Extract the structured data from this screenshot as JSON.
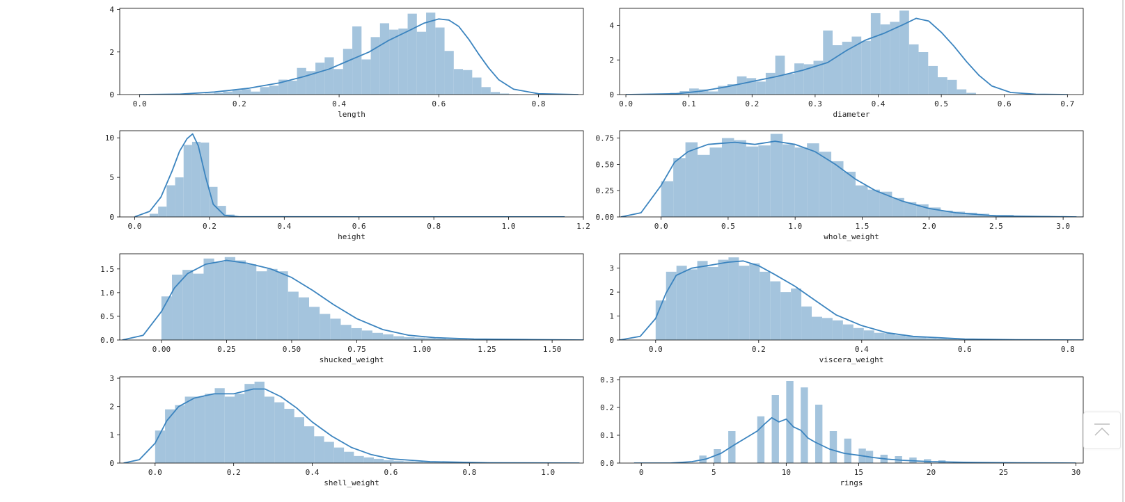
{
  "colors": {
    "bar_fill": "#a4c4dd",
    "kde_line": "#3b84bf",
    "axis": "#000000",
    "text": "#222222"
  },
  "back_to_top": {
    "icon": "arrow-up-to-line-icon"
  },
  "chart_data": [
    {
      "type": "bar",
      "subtype": "histogram+kde",
      "xlabel": "length",
      "ylabel": "",
      "xlim": [
        -0.04,
        0.89
      ],
      "ylim": [
        0,
        4.05
      ],
      "xticks": [
        0.0,
        0.2,
        0.4,
        0.6,
        0.8
      ],
      "xtick_labels": [
        "0.0",
        "0.2",
        "0.4",
        "0.6",
        "0.8"
      ],
      "yticks": [
        0,
        2,
        4
      ],
      "ytick_labels": [
        "0",
        "2",
        "4"
      ],
      "bins": {
        "start": 0.075,
        "width": 0.0185,
        "values": [
          0.01,
          0.02,
          0.03,
          0.05,
          0.08,
          0.14,
          0.2,
          0.25,
          0.14,
          0.35,
          0.42,
          0.7,
          0.65,
          1.25,
          1.1,
          1.5,
          1.75,
          1.2,
          2.15,
          3.2,
          1.65,
          2.7,
          3.35,
          3.05,
          3.1,
          3.8,
          2.95,
          3.85,
          3.15,
          2.05,
          1.2,
          1.15,
          0.8,
          0.35,
          0.12,
          0.05,
          0.02
        ]
      },
      "kde": {
        "x": [
          0.0,
          0.08,
          0.15,
          0.22,
          0.28,
          0.33,
          0.38,
          0.42,
          0.46,
          0.5,
          0.54,
          0.57,
          0.6,
          0.62,
          0.64,
          0.66,
          0.68,
          0.7,
          0.72,
          0.75,
          0.8,
          0.88
        ],
        "y": [
          0.0,
          0.02,
          0.12,
          0.3,
          0.55,
          0.85,
          1.2,
          1.6,
          2.0,
          2.55,
          3.0,
          3.35,
          3.55,
          3.5,
          3.2,
          2.6,
          1.9,
          1.25,
          0.7,
          0.25,
          0.04,
          0.0
        ]
      }
    },
    {
      "type": "bar",
      "subtype": "histogram+kde",
      "xlabel": "diameter",
      "ylabel": "",
      "xlim": [
        -0.01,
        0.725
      ],
      "ylim": [
        0,
        4.98
      ],
      "xticks": [
        0.0,
        0.1,
        0.2,
        0.3,
        0.4,
        0.5,
        0.6,
        0.7
      ],
      "xtick_labels": [
        "0.0",
        "0.1",
        "0.2",
        "0.3",
        "0.4",
        "0.5",
        "0.6",
        "0.7"
      ],
      "yticks": [
        0,
        2,
        4
      ],
      "ytick_labels": [
        "0",
        "2",
        "4"
      ],
      "bins": {
        "start": 0.055,
        "width": 0.01515,
        "values": [
          0.05,
          0.1,
          0.2,
          0.35,
          0.3,
          0.18,
          0.5,
          0.6,
          1.05,
          0.95,
          0.75,
          1.25,
          2.25,
          1.2,
          1.8,
          1.75,
          1.95,
          3.7,
          2.85,
          3.05,
          3.35,
          3.1,
          4.7,
          4.05,
          4.2,
          4.85,
          2.9,
          2.45,
          1.65,
          1.0,
          0.85,
          0.3,
          0.1
        ]
      },
      "kde": {
        "x": [
          0.0,
          0.08,
          0.12,
          0.16,
          0.2,
          0.24,
          0.28,
          0.32,
          0.35,
          0.38,
          0.41,
          0.44,
          0.46,
          0.48,
          0.5,
          0.52,
          0.54,
          0.56,
          0.58,
          0.61,
          0.65,
          0.7
        ],
        "y": [
          0.0,
          0.05,
          0.2,
          0.45,
          0.75,
          1.05,
          1.4,
          1.85,
          2.55,
          3.15,
          3.55,
          4.05,
          4.4,
          4.25,
          3.6,
          2.8,
          1.9,
          1.1,
          0.5,
          0.12,
          0.02,
          0.0
        ]
      }
    },
    {
      "type": "bar",
      "subtype": "histogram+kde",
      "xlabel": "height",
      "ylabel": "",
      "xlim": [
        -0.04,
        1.2
      ],
      "ylim": [
        0,
        10.9
      ],
      "xticks": [
        0.0,
        0.2,
        0.4,
        0.6,
        0.8,
        1.0,
        1.2
      ],
      "xtick_labels": [
        "0.0",
        "0.2",
        "0.4",
        "0.6",
        "0.8",
        "1.0",
        "1.2"
      ],
      "yticks": [
        0,
        5,
        10
      ],
      "ytick_labels": [
        "0",
        "5",
        "10"
      ],
      "bins": {
        "start": 0.04,
        "width": 0.0227,
        "values": [
          0.4,
          1.3,
          4.0,
          5.0,
          9.1,
          9.5,
          9.4,
          3.8,
          1.4,
          0.3,
          0.05,
          0.02,
          0.02,
          0.01,
          0.01,
          0.01,
          0.01,
          0.01,
          0.01,
          0.01,
          0.01,
          0.01,
          0.01,
          0.01,
          0.01,
          0.01,
          0.01,
          0.01,
          0.01,
          0.01,
          0.01,
          0.01,
          0.01,
          0.01,
          0.01,
          0.01,
          0.01,
          0.01,
          0.01,
          0.01,
          0.01,
          0.01,
          0.01,
          0.01,
          0.01,
          0.01,
          0.01,
          0.01,
          0.01,
          0.01
        ]
      },
      "kde": {
        "x": [
          0.0,
          0.04,
          0.07,
          0.1,
          0.12,
          0.14,
          0.155,
          0.17,
          0.19,
          0.21,
          0.24,
          0.28,
          0.4,
          0.6,
          0.8,
          1.0,
          1.15
        ],
        "y": [
          0.02,
          0.7,
          2.5,
          5.8,
          8.3,
          9.9,
          10.5,
          9.0,
          5.0,
          1.6,
          0.2,
          0.02,
          0.02,
          0.01,
          0.01,
          0.01,
          0.01
        ]
      }
    },
    {
      "type": "bar",
      "subtype": "histogram+kde",
      "xlabel": "whole_weight",
      "ylabel": "",
      "xlim": [
        -0.31,
        3.15
      ],
      "ylim": [
        0,
        0.82
      ],
      "xticks": [
        0.0,
        0.5,
        1.0,
        1.5,
        2.0,
        2.5,
        3.0
      ],
      "xtick_labels": [
        "0.0",
        "0.5",
        "1.0",
        "1.5",
        "2.0",
        "2.5",
        "3.0"
      ],
      "yticks": [
        0,
        0.25,
        0.5,
        0.75
      ],
      "ytick_labels": [
        "0.00",
        "0.25",
        "0.50",
        "0.75"
      ],
      "bins": {
        "start": 0.0,
        "width": 0.0907,
        "values": [
          0.34,
          0.56,
          0.71,
          0.59,
          0.66,
          0.75,
          0.73,
          0.67,
          0.68,
          0.79,
          0.69,
          0.66,
          0.7,
          0.62,
          0.53,
          0.43,
          0.3,
          0.26,
          0.24,
          0.18,
          0.14,
          0.12,
          0.09,
          0.06,
          0.05,
          0.04,
          0.03,
          0.02,
          0.02,
          0.01,
          0.01,
          0.01,
          0.005,
          0.005,
          0.005
        ]
      },
      "kde": {
        "x": [
          -0.3,
          -0.15,
          0.0,
          0.1,
          0.2,
          0.35,
          0.55,
          0.7,
          0.85,
          1.0,
          1.15,
          1.3,
          1.45,
          1.6,
          1.8,
          2.0,
          2.2,
          2.5,
          3.1
        ],
        "y": [
          0.0,
          0.04,
          0.3,
          0.52,
          0.62,
          0.69,
          0.71,
          0.69,
          0.72,
          0.69,
          0.62,
          0.5,
          0.36,
          0.25,
          0.15,
          0.08,
          0.04,
          0.01,
          0.0
        ]
      }
    },
    {
      "type": "bar",
      "subtype": "histogram+kde",
      "xlabel": "shucked_weight",
      "ylabel": "",
      "xlim": [
        -0.16,
        1.62
      ],
      "ylim": [
        0,
        1.82
      ],
      "xticks": [
        0.0,
        0.25,
        0.5,
        0.75,
        1.0,
        1.25,
        1.5
      ],
      "xtick_labels": [
        "0.00",
        "0.25",
        "0.50",
        "0.75",
        "1.00",
        "1.25",
        "1.50"
      ],
      "yticks": [
        0,
        0.5,
        1.0,
        1.5
      ],
      "ytick_labels": [
        "0.0",
        "0.5",
        "1.0",
        "1.5"
      ],
      "bins": {
        "start": 0.0,
        "width": 0.0405,
        "values": [
          0.92,
          1.38,
          1.48,
          1.4,
          1.72,
          1.65,
          1.75,
          1.68,
          1.6,
          1.45,
          1.5,
          1.45,
          1.02,
          0.9,
          0.7,
          0.55,
          0.45,
          0.32,
          0.25,
          0.2,
          0.15,
          0.12,
          0.08,
          0.06,
          0.05,
          0.04,
          0.03,
          0.02,
          0.02,
          0.01,
          0.01,
          0.01,
          0.01,
          0.01,
          0.01,
          0.01,
          0.01,
          0.01,
          0.01
        ]
      },
      "kde": {
        "x": [
          -0.15,
          -0.07,
          0.0,
          0.05,
          0.1,
          0.17,
          0.25,
          0.33,
          0.42,
          0.5,
          0.58,
          0.66,
          0.75,
          0.85,
          0.95,
          1.05,
          1.2,
          1.4,
          1.62
        ],
        "y": [
          0.0,
          0.1,
          0.6,
          1.1,
          1.4,
          1.6,
          1.68,
          1.62,
          1.5,
          1.32,
          1.05,
          0.75,
          0.45,
          0.22,
          0.1,
          0.05,
          0.02,
          0.01,
          0.0
        ]
      }
    },
    {
      "type": "bar",
      "subtype": "histogram+kde",
      "xlabel": "viscera_weight",
      "ylabel": "",
      "xlim": [
        -0.07,
        0.83
      ],
      "ylim": [
        0,
        3.6
      ],
      "xticks": [
        0.0,
        0.2,
        0.4,
        0.6,
        0.8
      ],
      "xtick_labels": [
        "0.0",
        "0.2",
        "0.4",
        "0.6",
        "0.8"
      ],
      "yticks": [
        0,
        1,
        2,
        3
      ],
      "ytick_labels": [
        "0",
        "1",
        "2",
        "3"
      ],
      "bins": {
        "start": 0.0,
        "width": 0.0202,
        "values": [
          1.65,
          2.85,
          3.1,
          2.95,
          3.3,
          3.05,
          3.35,
          3.45,
          3.1,
          3.2,
          2.85,
          2.45,
          2.0,
          2.15,
          1.4,
          0.97,
          0.92,
          0.82,
          0.65,
          0.5,
          0.4,
          0.3,
          0.28,
          0.2,
          0.15,
          0.12,
          0.08,
          0.06,
          0.05,
          0.04,
          0.03,
          0.03,
          0.02,
          0.02,
          0.02,
          0.01,
          0.01,
          0.01,
          0.01,
          0.01
        ]
      },
      "kde": {
        "x": [
          -0.07,
          -0.03,
          0.0,
          0.02,
          0.04,
          0.07,
          0.1,
          0.14,
          0.17,
          0.2,
          0.23,
          0.27,
          0.31,
          0.35,
          0.4,
          0.45,
          0.5,
          0.6,
          0.7,
          0.83
        ],
        "y": [
          0.0,
          0.15,
          0.9,
          1.95,
          2.7,
          3.0,
          3.1,
          3.25,
          3.3,
          3.1,
          2.75,
          2.25,
          1.65,
          1.05,
          0.6,
          0.3,
          0.15,
          0.04,
          0.01,
          0.0
        ]
      }
    },
    {
      "type": "bar",
      "subtype": "histogram+kde",
      "xlabel": "shell_weight",
      "ylabel": "",
      "xlim": [
        -0.09,
        1.09
      ],
      "ylim": [
        0,
        3.05
      ],
      "xticks": [
        0.0,
        0.2,
        0.4,
        0.6,
        0.8,
        1.0
      ],
      "xtick_labels": [
        "0.0",
        "0.2",
        "0.4",
        "0.6",
        "0.8",
        "1.0"
      ],
      "yticks": [
        0,
        1,
        2,
        3
      ],
      "ytick_labels": [
        "0",
        "1",
        "2",
        "3"
      ],
      "bins": {
        "start": 0.0,
        "width": 0.0253,
        "values": [
          1.15,
          1.9,
          2.05,
          2.35,
          2.35,
          2.45,
          2.65,
          2.35,
          2.45,
          2.8,
          2.88,
          2.35,
          2.15,
          1.92,
          1.62,
          1.3,
          0.95,
          0.75,
          0.55,
          0.4,
          0.25,
          0.2,
          0.15,
          0.1,
          0.08,
          0.06,
          0.05,
          0.04,
          0.03,
          0.02,
          0.02,
          0.01,
          0.01,
          0.01,
          0.01,
          0.01,
          0.01,
          0.01,
          0.01,
          0.01
        ]
      },
      "kde": {
        "x": [
          -0.08,
          -0.04,
          0.0,
          0.03,
          0.06,
          0.1,
          0.15,
          0.2,
          0.25,
          0.28,
          0.32,
          0.36,
          0.4,
          0.45,
          0.5,
          0.55,
          0.6,
          0.7,
          0.85,
          1.08
        ],
        "y": [
          0.0,
          0.12,
          0.7,
          1.5,
          2.0,
          2.3,
          2.45,
          2.45,
          2.62,
          2.62,
          2.35,
          1.95,
          1.45,
          0.95,
          0.55,
          0.3,
          0.15,
          0.05,
          0.01,
          0.0
        ]
      }
    },
    {
      "type": "bar",
      "subtype": "histogram+kde",
      "xlabel": "rings",
      "ylabel": "",
      "xlim": [
        -1.5,
        30.5
      ],
      "ylim": [
        0,
        0.31
      ],
      "xticks": [
        0,
        5,
        10,
        15,
        20,
        25,
        30
      ],
      "xtick_labels": [
        "0",
        "5",
        "10",
        "15",
        "20",
        "25",
        "30"
      ],
      "yticks": [
        0,
        0.1,
        0.2,
        0.3
      ],
      "ytick_labels": [
        "0.0",
        "0.1",
        "0.2",
        "0.3"
      ],
      "bins": {
        "start": 1.0,
        "width": 0.5,
        "values": [
          0.0,
          0.0,
          0.0,
          0.0,
          0.0,
          0.0,
          0.027,
          0.0,
          0.05,
          0.0,
          0.115,
          0.0,
          0.0,
          0.0,
          0.168,
          0.0,
          0.245,
          0.0,
          0.295,
          0.0,
          0.272,
          0.0,
          0.21,
          0.0,
          0.115,
          0.0,
          0.088,
          0.0,
          0.052,
          0.044,
          0.0,
          0.03,
          0.0,
          0.025,
          0.0,
          0.02,
          0.0,
          0.014,
          0.0,
          0.01,
          0.0,
          0.005,
          0.0,
          0.004,
          0.0,
          0.003,
          0.0,
          0.002,
          0.0,
          0.001,
          0.0,
          0.001,
          0.0,
          0.001,
          0.0,
          0.001,
          0.0,
          0.001
        ]
      },
      "kde": {
        "x": [
          -0.5,
          2.0,
          3.5,
          4.5,
          5.5,
          6.5,
          7.2,
          8.0,
          8.5,
          9.0,
          9.5,
          10.0,
          10.5,
          11.0,
          11.5,
          12.0,
          13.0,
          14.0,
          15.0,
          16.0,
          17.0,
          18.0,
          20.0,
          23.0,
          26.0,
          30.0
        ],
        "y": [
          0.0,
          0.0,
          0.005,
          0.015,
          0.035,
          0.068,
          0.09,
          0.115,
          0.14,
          0.163,
          0.148,
          0.158,
          0.13,
          0.118,
          0.09,
          0.075,
          0.05,
          0.035,
          0.028,
          0.02,
          0.014,
          0.01,
          0.005,
          0.002,
          0.001,
          0.0
        ]
      }
    }
  ]
}
